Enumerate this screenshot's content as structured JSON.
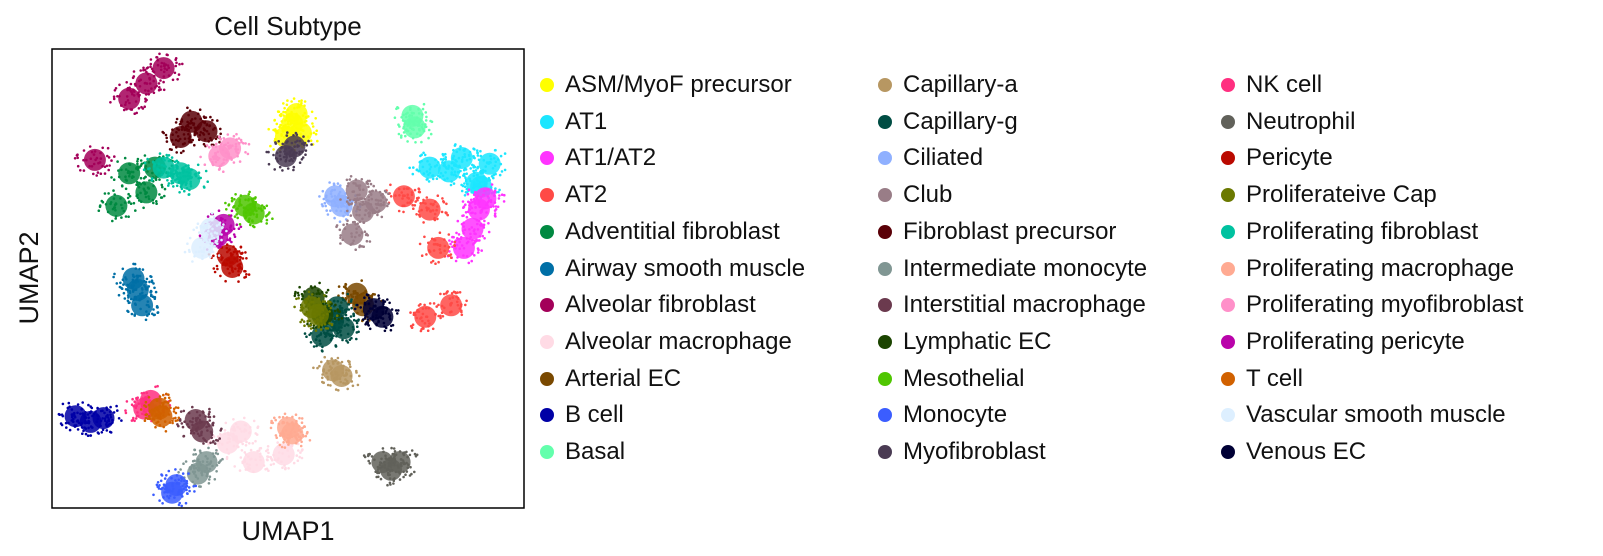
{
  "chart_data": {
    "type": "scatter",
    "title": "Cell Subtype",
    "xlabel": "UMAP1",
    "ylabel": "UMAP2",
    "xlim": [
      -10,
      12
    ],
    "ylim": [
      -12,
      12
    ],
    "grid": false,
    "ticks": false,
    "legend_placement": "right",
    "legend_columns": 3,
    "series": [
      {
        "name": "ASM/MyoF precursor",
        "color": "#ffff00",
        "x": [
          1.2,
          1.6,
          0.9,
          1.4
        ],
        "y": [
          8.1,
          7.6,
          7.4,
          8.6
        ]
      },
      {
        "name": "AT1",
        "color": "#1ce6ff",
        "x": [
          8.5,
          9.8,
          10.4,
          7.6,
          9.1,
          10.0
        ],
        "y": [
          5.6,
          5.0,
          6.0,
          5.8,
          6.3,
          4.8
        ]
      },
      {
        "name": "AT1/AT2",
        "color": "#ff34ff",
        "x": [
          9.6,
          9.9,
          9.2,
          10.2
        ],
        "y": [
          2.6,
          3.6,
          1.6,
          4.2
        ]
      },
      {
        "name": "AT2",
        "color": "#ff4a46",
        "x": [
          6.4,
          7.6,
          8.0,
          8.6,
          7.4
        ],
        "y": [
          4.3,
          3.6,
          1.6,
          -1.4,
          -2.0
        ]
      },
      {
        "name": "Adventitial fibroblast",
        "color": "#008941",
        "x": [
          -6.4,
          -5.6,
          -7.0,
          -5.2
        ],
        "y": [
          5.5,
          4.5,
          3.8,
          5.8
        ]
      },
      {
        "name": "Airway smooth muscle",
        "color": "#006fa6",
        "x": [
          -6.0,
          -5.8,
          -6.2
        ],
        "y": [
          -0.6,
          -1.4,
          0.0
        ]
      },
      {
        "name": "Alveolar fibroblast",
        "color": "#a30059",
        "x": [
          -5.6,
          -6.4,
          -4.8,
          -8.0
        ],
        "y": [
          10.2,
          9.4,
          11.0,
          6.2
        ]
      },
      {
        "name": "Alveolar macrophage",
        "color": "#ffdbe5",
        "x": [
          -1.8,
          -0.6,
          0.8,
          -1.2
        ],
        "y": [
          -8.6,
          -9.6,
          -9.2,
          -8.0
        ]
      },
      {
        "name": "Arterial EC",
        "color": "#7a4900",
        "x": [
          4.5,
          4.2
        ],
        "y": [
          -1.4,
          -0.8
        ]
      },
      {
        "name": "B cell",
        "color": "#0000a6",
        "x": [
          -8.9,
          -8.2,
          -7.6
        ],
        "y": [
          -7.2,
          -7.5,
          -7.3
        ]
      },
      {
        "name": "Basal",
        "color": "#63ffac",
        "x": [
          6.8,
          6.9
        ],
        "y": [
          8.5,
          7.9
        ]
      },
      {
        "name": "Capillary-a",
        "color": "#b79762",
        "x": [
          3.1,
          3.5
        ],
        "y": [
          -4.8,
          -5.1
        ]
      },
      {
        "name": "Capillary-g",
        "color": "#004d43",
        "x": [
          3.1,
          2.6,
          3.6,
          3.3
        ],
        "y": [
          -2.2,
          -3.0,
          -2.6,
          -1.5
        ]
      },
      {
        "name": "Ciliated",
        "color": "#8fb0ff",
        "x": [
          3.2,
          3.5
        ],
        "y": [
          4.3,
          3.8
        ]
      },
      {
        "name": "Club",
        "color": "#997d87",
        "x": [
          4.5,
          4.0,
          5.1,
          4.2
        ],
        "y": [
          3.5,
          2.3,
          4.0,
          4.6
        ]
      },
      {
        "name": "Fibroblast precursor",
        "color": "#5a0007",
        "x": [
          -3.5,
          -2.8,
          -4.0
        ],
        "y": [
          8.2,
          7.7,
          7.4
        ]
      },
      {
        "name": "Intermediate monocyte",
        "color": "#809693",
        "x": [
          -2.8,
          -3.2
        ],
        "y": [
          -9.6,
          -10.2
        ]
      },
      {
        "name": "Interstitial macrophage",
        "color": "#6b3a4e",
        "x": [
          -3.3,
          -3.0
        ],
        "y": [
          -7.4,
          -8.0
        ]
      },
      {
        "name": "Lymphatic EC",
        "color": "#1b4400",
        "x": [
          2.2,
          2.6
        ],
        "y": [
          -1.0,
          -1.9
        ]
      },
      {
        "name": "Mesothelial",
        "color": "#4fc601",
        "x": [
          -1.0,
          -0.6
        ],
        "y": [
          3.8,
          3.4
        ]
      },
      {
        "name": "Monocyte",
        "color": "#3b5dff",
        "x": [
          -4.2,
          -4.4
        ],
        "y": [
          -10.8,
          -11.2
        ]
      },
      {
        "name": "Myofibroblast",
        "color": "#4a3b53",
        "x": [
          0.9,
          1.3
        ],
        "y": [
          6.4,
          6.9
        ]
      },
      {
        "name": "NK cell",
        "color": "#ff2f80",
        "x": [
          -5.4,
          -5.7
        ],
        "y": [
          -6.4,
          -6.8
        ]
      },
      {
        "name": "Neutrophil",
        "color": "#61615a",
        "x": [
          5.4,
          6.2,
          5.8
        ],
        "y": [
          -9.6,
          -9.6,
          -10.0
        ]
      },
      {
        "name": "Pericyte",
        "color": "#ba0900",
        "x": [
          -1.8,
          -1.6
        ],
        "y": [
          1.2,
          0.6
        ]
      },
      {
        "name": "Proliferateive Cap",
        "color": "#6b7900",
        "x": [
          2.1,
          2.4
        ],
        "y": [
          -1.5,
          -1.9
        ]
      },
      {
        "name": "Proliferating fibroblast",
        "color": "#00c2a0",
        "x": [
          -4.8,
          -4.0,
          -3.6
        ],
        "y": [
          5.8,
          5.5,
          5.2
        ]
      },
      {
        "name": "Proliferating macrophage",
        "color": "#ffaa92",
        "x": [
          1.0,
          1.2
        ],
        "y": [
          -7.8,
          -8.1
        ]
      },
      {
        "name": "Proliferating myofibroblast",
        "color": "#ff90c9",
        "x": [
          -2.2,
          -1.7
        ],
        "y": [
          6.4,
          6.8
        ]
      },
      {
        "name": "Proliferating pericyte",
        "color": "#b903aa",
        "x": [
          -2.3,
          -2.0
        ],
        "y": [
          2.2,
          2.8
        ]
      },
      {
        "name": "T cell",
        "color": "#d16100",
        "x": [
          -5.0,
          -4.9
        ],
        "y": [
          -6.8,
          -7.2
        ]
      },
      {
        "name": "Vascular smooth muscle",
        "color": "#ddefff",
        "x": [
          -3.0,
          -2.6
        ],
        "y": [
          1.6,
          2.6
        ]
      },
      {
        "name": "Venous EC",
        "color": "#000035",
        "x": [
          5.0,
          5.4
        ],
        "y": [
          -1.6,
          -2.0
        ]
      }
    ]
  }
}
